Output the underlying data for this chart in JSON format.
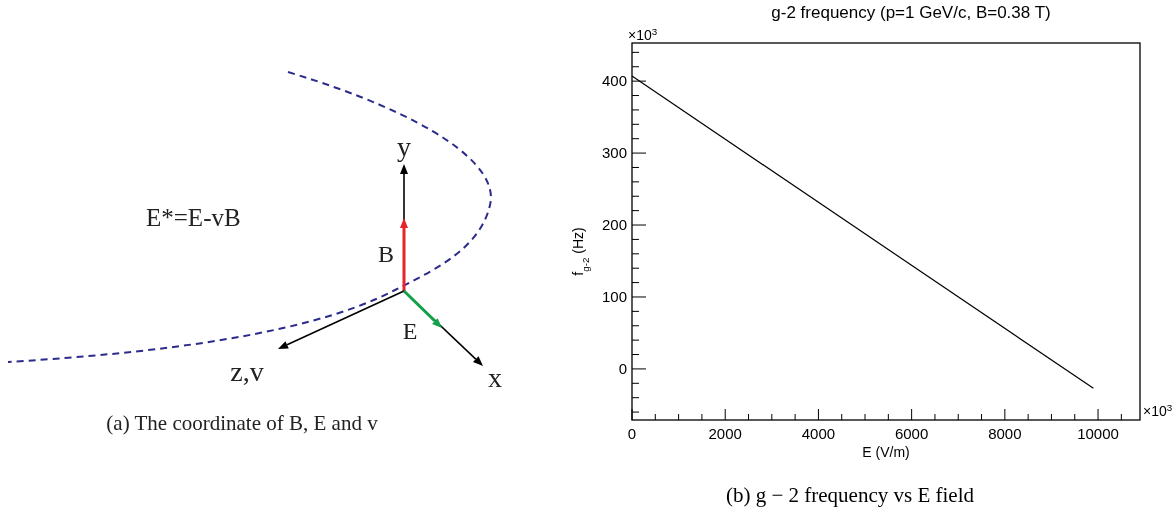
{
  "chart_data": [
    {
      "type": "other",
      "annotations": [
        "E*=E-vB",
        "y",
        "B",
        "E",
        "z,v",
        "x",
        "(a) The coordinate of B, E and v"
      ]
    },
    {
      "type": "line",
      "title": "g-2 frequency (p=1 GeV/c, B=0.38 T)",
      "xlabel": "E (V/m)",
      "ylabel": "f$_{g-2}$ (Hz)",
      "x": [
        0,
        9900
      ],
      "series": [
        {
          "color": "#000000",
          "values": [
            407,
            -27
          ]
        }
      ],
      "xlim": [
        0,
        10900
      ],
      "ylim": [
        -71,
        453
      ],
      "xticks": [
        0,
        {
          "value": 500,
          "label": null
        },
        {
          "value": 1000,
          "label": null
        },
        {
          "value": 1500,
          "label": null
        },
        2000,
        {
          "value": 2500,
          "label": null
        },
        {
          "value": 3000,
          "label": null
        },
        {
          "value": 3500,
          "label": null
        },
        4000,
        {
          "value": 4500,
          "label": null
        },
        {
          "value": 5000,
          "label": null
        },
        {
          "value": 5500,
          "label": null
        },
        6000,
        {
          "value": 6500,
          "label": null
        },
        {
          "value": 7000,
          "label": null
        },
        {
          "value": 7500,
          "label": null
        },
        8000,
        {
          "value": 8500,
          "label": null
        },
        {
          "value": 9000,
          "label": null
        },
        {
          "value": 9500,
          "label": null
        },
        10000,
        {
          "value": 10500,
          "label": null
        }
      ],
      "yticks": [
        {
          "value": -60,
          "label": null
        },
        {
          "value": -40,
          "label": null
        },
        {
          "value": -20,
          "label": null
        },
        0,
        {
          "value": 20,
          "label": null
        },
        {
          "value": 40,
          "label": null
        },
        {
          "value": 60,
          "label": null
        },
        {
          "value": 80,
          "label": null
        },
        100,
        {
          "value": 120,
          "label": null
        },
        {
          "value": 140,
          "label": null
        },
        {
          "value": 160,
          "label": null
        },
        {
          "value": 180,
          "label": null
        },
        200,
        {
          "value": 220,
          "label": null
        },
        {
          "value": 240,
          "label": null
        },
        {
          "value": 260,
          "label": null
        },
        {
          "value": 280,
          "label": null
        },
        300,
        {
          "value": 320,
          "label": null
        },
        {
          "value": 340,
          "label": null
        },
        {
          "value": 360,
          "label": null
        },
        {
          "value": 380,
          "label": null
        },
        400,
        {
          "value": 420,
          "label": null
        },
        {
          "value": 440,
          "label": null
        }
      ],
      "annotations": [
        "×10$^{3}$",
        "×10$^{3}$",
        "(b) g − 2 frequency vs E field"
      ]
    }
  ]
}
